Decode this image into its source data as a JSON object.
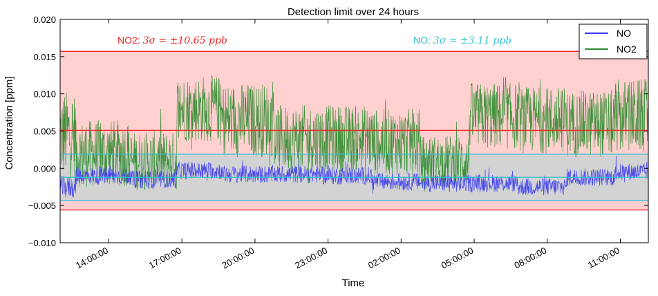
{
  "chart_data": {
    "type": "line",
    "title": "Detection limit over 24 hours",
    "xlabel": "Time",
    "ylabel": "Concentration [ppm]",
    "ylim": [
      -0.01,
      0.02
    ],
    "y_ticks": [
      "0.020",
      "0.015",
      "0.010",
      "0.005",
      "0.000",
      "−0.005",
      "−0.010"
    ],
    "y_tick_values": [
      0.02,
      0.015,
      0.01,
      0.005,
      0.0,
      -0.005,
      -0.01
    ],
    "xlim_hours": [
      12.0,
      36.15
    ],
    "x_ticks": [
      "14:00:00",
      "17:00:00",
      "20:00:00",
      "23:00:00",
      "02:00:00",
      "05:00:00",
      "08:00:00",
      "11:00:00"
    ],
    "x_tick_hours": [
      14,
      17,
      20,
      23,
      26,
      29,
      32,
      35
    ],
    "legend": {
      "position": "top-right",
      "entries": [
        "NO",
        "NO2"
      ]
    },
    "colors": {
      "NO": "#3b3bf0",
      "NO2": "#2e8b2e",
      "no2_band": "#ffd0d0",
      "no_band": "#d3d3d3",
      "no2_lines": "#ee2222",
      "no_lines": "#30c0d0"
    },
    "annotations": {
      "no2": {
        "prefix": "NO2: ",
        "formula": "3σ = ±10.65 ppb"
      },
      "no": {
        "prefix": "NO: ",
        "formula": "3σ = ±3.11 ppb"
      }
    },
    "bands": {
      "NO2": {
        "center": 0.0051,
        "upper": 0.0157,
        "lower": -0.0056
      },
      "NO": {
        "center": -0.0012,
        "upper": 0.0019,
        "lower": -0.0043
      }
    },
    "series": [
      {
        "name": "NO2",
        "segments": [
          {
            "start": 12.0,
            "end": 12.65,
            "mean": 0.0045,
            "spread": 0.006
          },
          {
            "start": 12.65,
            "end": 14.9,
            "mean": 0.002,
            "spread": 0.0045
          },
          {
            "start": 14.9,
            "end": 16.8,
            "mean": 0.001,
            "spread": 0.004
          },
          {
            "start": 16.8,
            "end": 18.6,
            "mean": 0.008,
            "spread": 0.0045
          },
          {
            "start": 18.6,
            "end": 20.8,
            "mean": 0.0065,
            "spread": 0.005
          },
          {
            "start": 20.8,
            "end": 22.8,
            "mean": 0.004,
            "spread": 0.0045
          },
          {
            "start": 22.8,
            "end": 24.8,
            "mean": 0.004,
            "spread": 0.0045
          },
          {
            "start": 24.8,
            "end": 26.8,
            "mean": 0.0035,
            "spread": 0.0045
          },
          {
            "start": 26.8,
            "end": 28.8,
            "mean": 0.001,
            "spread": 0.0035
          },
          {
            "start": 28.8,
            "end": 30.8,
            "mean": 0.007,
            "spread": 0.0045
          },
          {
            "start": 30.8,
            "end": 32.8,
            "mean": 0.0065,
            "spread": 0.0045
          },
          {
            "start": 32.8,
            "end": 34.8,
            "mean": 0.006,
            "spread": 0.0045
          },
          {
            "start": 34.8,
            "end": 36.15,
            "mean": 0.007,
            "spread": 0.005
          }
        ]
      },
      {
        "name": "NO",
        "segments": [
          {
            "start": 12.0,
            "end": 12.65,
            "mean": -0.0025,
            "spread": 0.0015
          },
          {
            "start": 12.65,
            "end": 14.9,
            "mean": -0.001,
            "spread": 0.0012
          },
          {
            "start": 14.9,
            "end": 16.8,
            "mean": -0.0015,
            "spread": 0.0012
          },
          {
            "start": 16.8,
            "end": 18.6,
            "mean": -0.0003,
            "spread": 0.0012
          },
          {
            "start": 18.6,
            "end": 20.8,
            "mean": -0.0008,
            "spread": 0.0012
          },
          {
            "start": 20.8,
            "end": 22.8,
            "mean": -0.0008,
            "spread": 0.0012
          },
          {
            "start": 22.8,
            "end": 24.8,
            "mean": -0.001,
            "spread": 0.0012
          },
          {
            "start": 24.8,
            "end": 26.8,
            "mean": -0.0018,
            "spread": 0.0012
          },
          {
            "start": 26.8,
            "end": 28.8,
            "mean": -0.002,
            "spread": 0.0012
          },
          {
            "start": 28.8,
            "end": 30.8,
            "mean": -0.002,
            "spread": 0.0012
          },
          {
            "start": 30.8,
            "end": 32.8,
            "mean": -0.0025,
            "spread": 0.0012
          },
          {
            "start": 32.8,
            "end": 34.8,
            "mean": -0.0012,
            "spread": 0.0012
          },
          {
            "start": 34.8,
            "end": 36.15,
            "mean": -0.0005,
            "spread": 0.0012
          }
        ]
      }
    ]
  }
}
